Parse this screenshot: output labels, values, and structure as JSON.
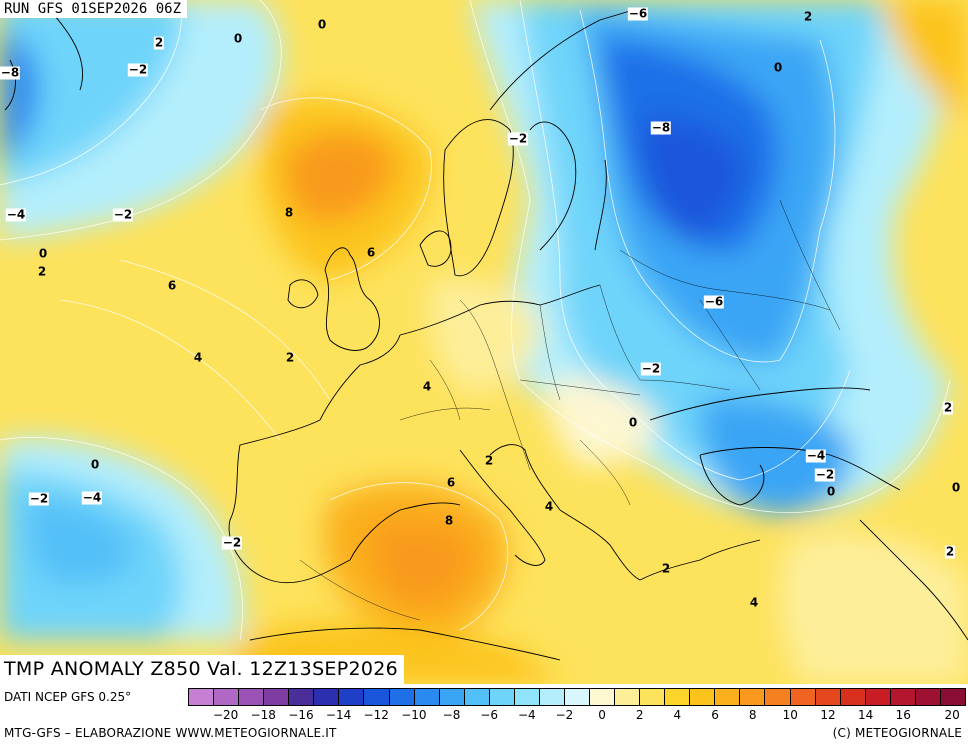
{
  "header": {
    "run_label": "RUN GFS 01SEP2026 06Z"
  },
  "title": "TMP ANOMALY Z850 Val. 12Z13SEP2026",
  "footer": {
    "source": "DATI NCEP GFS 0.25°",
    "credit": "MTG-GFS – ELABORAZIONE WWW.METEOGIORNALE.IT",
    "copyright": "(C) METEOGIORNALE"
  },
  "legend": {
    "colors": [
      "#c77fd3",
      "#b068c4",
      "#9a52b5",
      "#7f3da3",
      "#4a2f9a",
      "#2b2fb0",
      "#1f3fc8",
      "#1a56dc",
      "#1e6fe8",
      "#2a8af0",
      "#3ba5f5",
      "#52bff8",
      "#6ed4fa",
      "#8fe3fb",
      "#b4eefc",
      "#d9f6fd",
      "#fdf7d2",
      "#fdee9a",
      "#fde25c",
      "#fdd52a",
      "#fcc41a",
      "#fbb01c",
      "#f99a1e",
      "#f5801f",
      "#ee6420",
      "#e5481f",
      "#d9301f",
      "#c91d26",
      "#b5162f",
      "#9f1133",
      "#8a0d34"
    ],
    "ticks": [
      "−20",
      "−18",
      "−16",
      "−14",
      "−12",
      "−10",
      "−8",
      "−6",
      "−4",
      "−2",
      "0",
      "2",
      "4",
      "6",
      "8",
      "10",
      "12",
      "14",
      "16",
      "20"
    ]
  },
  "contour_labels": [
    {
      "text": "0"
    },
    {
      "text": "2"
    },
    {
      "text": "0"
    },
    {
      "text": "−2"
    },
    {
      "text": "−8"
    },
    {
      "text": "−6"
    },
    {
      "text": "2"
    },
    {
      "text": "0"
    },
    {
      "text": "−8"
    },
    {
      "text": "−2"
    },
    {
      "text": "8"
    },
    {
      "text": "−4"
    },
    {
      "text": "−2"
    },
    {
      "text": "0"
    },
    {
      "text": "2"
    },
    {
      "text": "6"
    },
    {
      "text": "6"
    },
    {
      "text": "4"
    },
    {
      "text": "2"
    },
    {
      "text": "−6"
    },
    {
      "text": "−2"
    },
    {
      "text": "4"
    },
    {
      "text": "0"
    },
    {
      "text": "2"
    },
    {
      "text": "0"
    },
    {
      "text": "−2"
    },
    {
      "text": "−4"
    },
    {
      "text": "6"
    },
    {
      "text": "4"
    },
    {
      "text": "8"
    },
    {
      "text": "−2"
    },
    {
      "text": "2"
    },
    {
      "text": "4"
    },
    {
      "text": "−4"
    },
    {
      "text": "−2"
    },
    {
      "text": "0"
    },
    {
      "text": "2"
    },
    {
      "text": "0"
    },
    {
      "text": "2"
    }
  ]
}
